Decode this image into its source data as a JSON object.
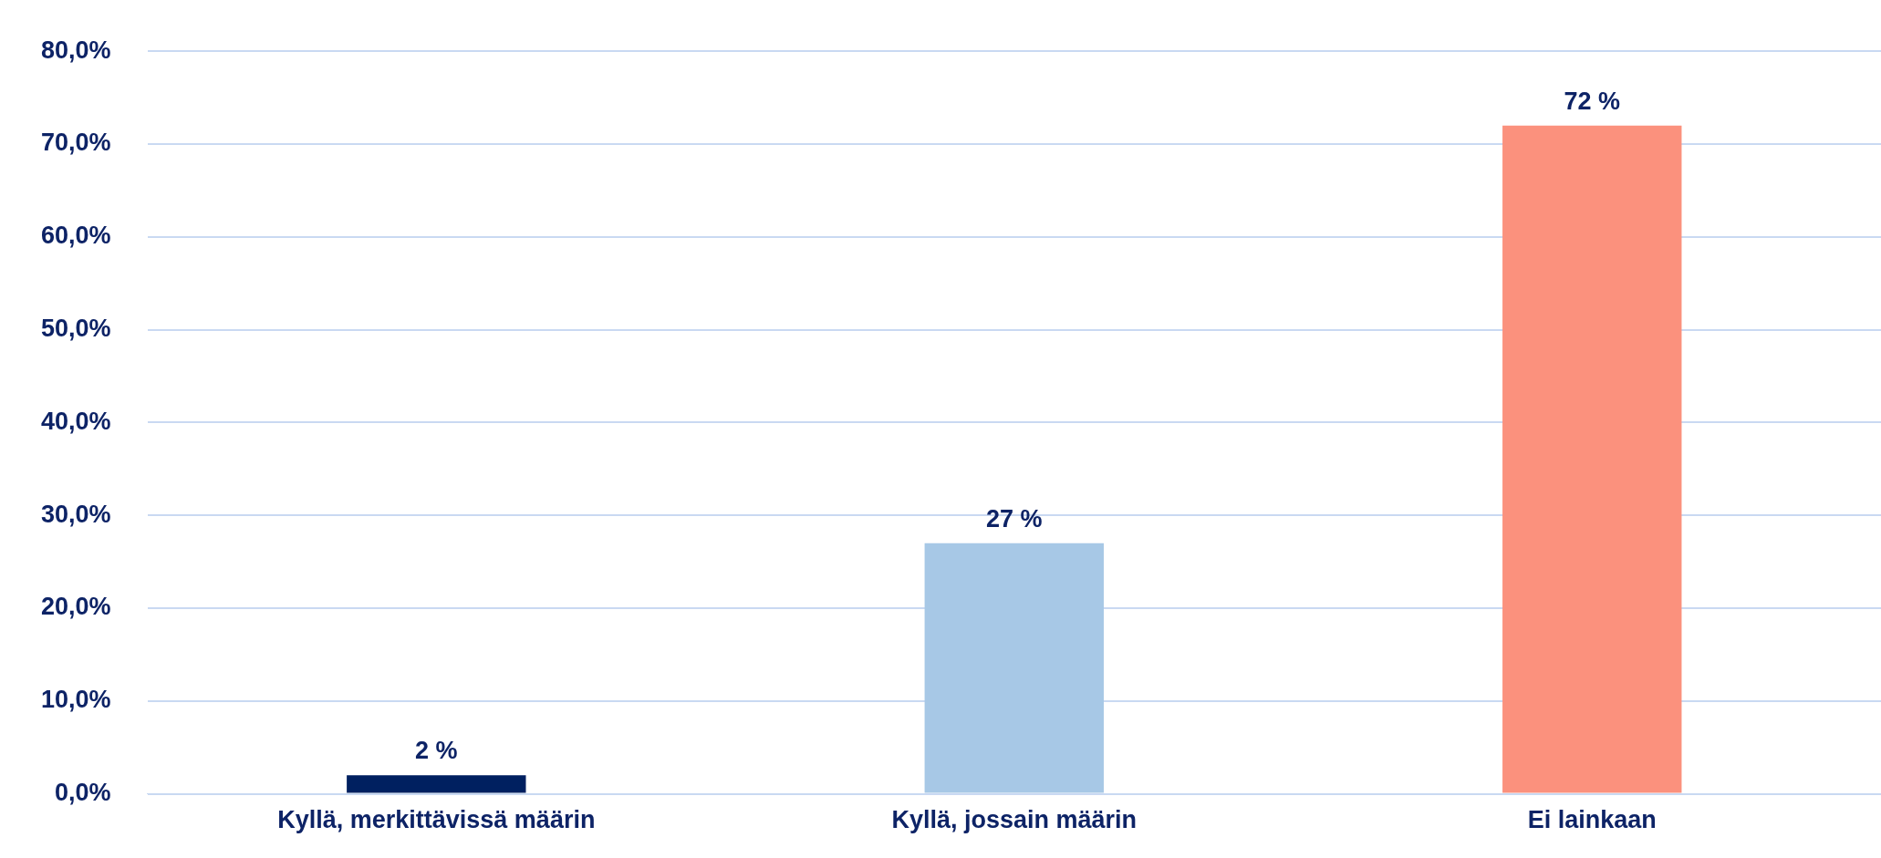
{
  "chart_data": {
    "type": "bar",
    "categories": [
      "Kyllä, merkittävissä määrin",
      "Kyllä, jossain määrin",
      "Ei lainkaan"
    ],
    "values": [
      2,
      27,
      72
    ],
    "colors": [
      "#002060",
      "#a7c8e6",
      "#fb917d"
    ],
    "value_labels": [
      "2 %",
      "27 %",
      "72 %"
    ],
    "ylim": [
      0,
      80
    ],
    "yticks": [
      {
        "value": 0,
        "label": "0,0%"
      },
      {
        "value": 10,
        "label": "10,0%"
      },
      {
        "value": 20,
        "label": "20,0%"
      },
      {
        "value": 30,
        "label": "30,0%"
      },
      {
        "value": 40,
        "label": "40,0%"
      },
      {
        "value": 50,
        "label": "50,0%"
      },
      {
        "value": 60,
        "label": "60,0%"
      },
      {
        "value": 70,
        "label": "70,0%"
      },
      {
        "value": 80,
        "label": "80,0%"
      }
    ],
    "grid": "y"
  }
}
